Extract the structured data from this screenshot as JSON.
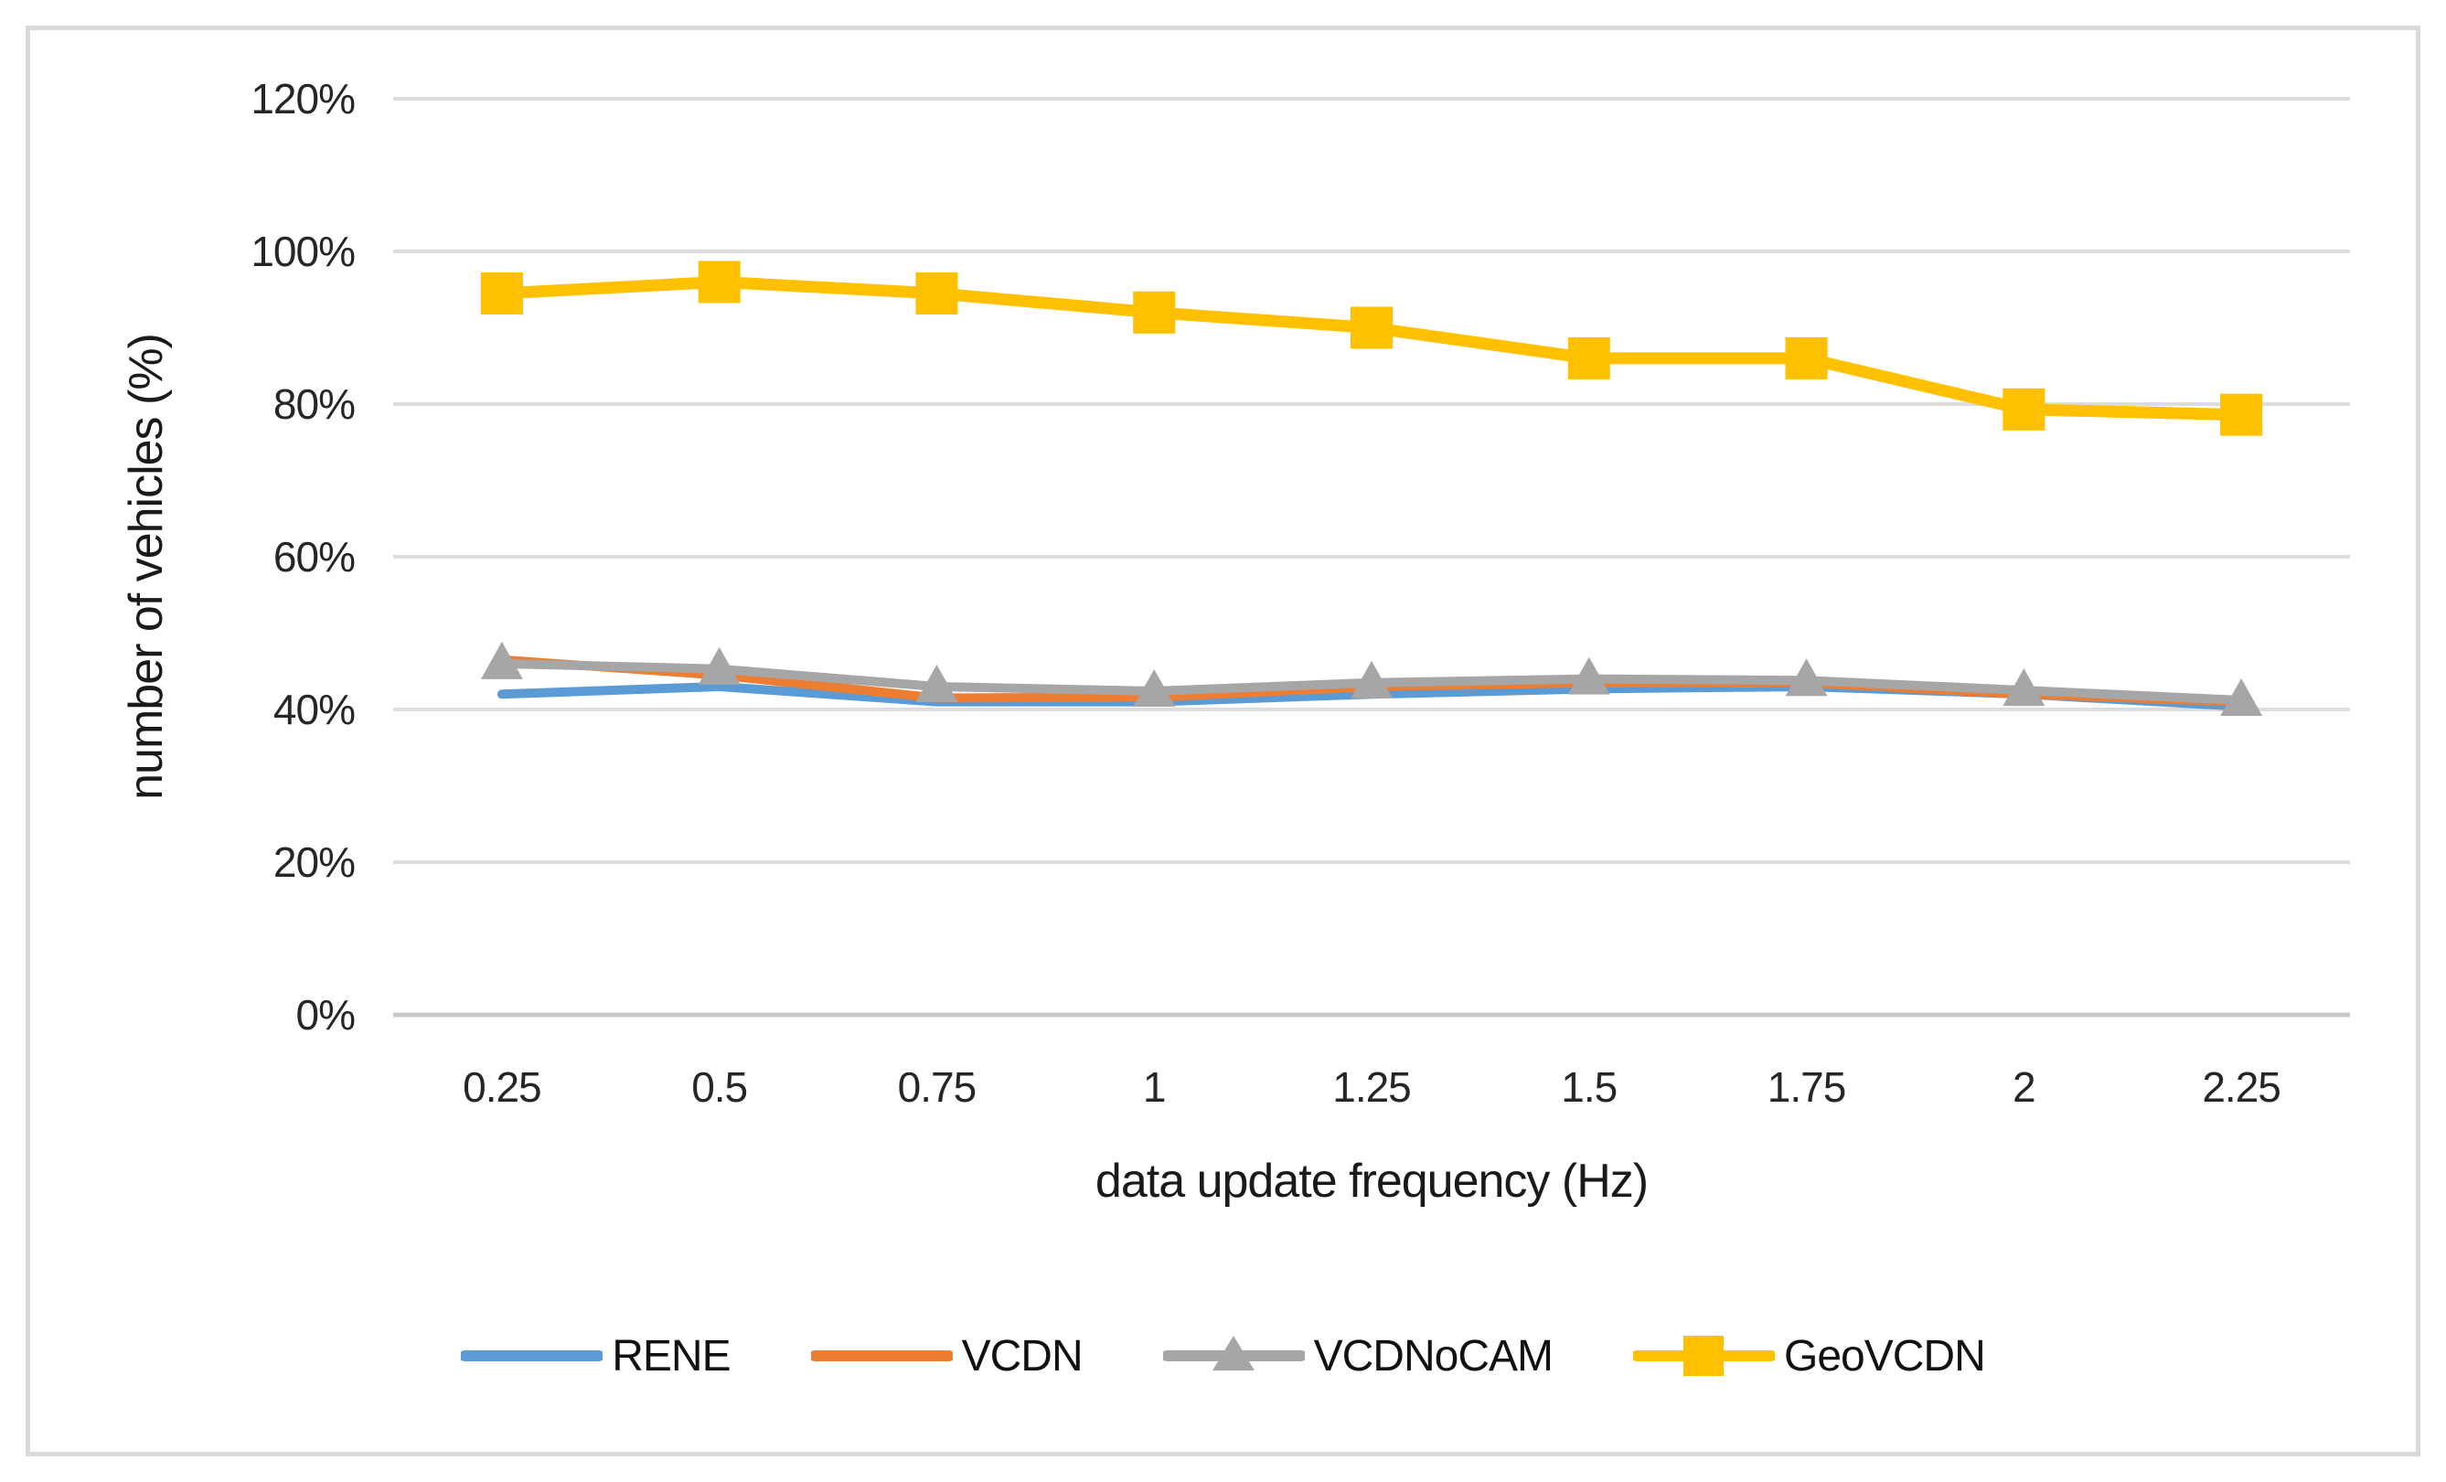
{
  "figure": {
    "background": "#ffffff",
    "border_color": "#d9d9d9",
    "gridline_color": "#dcdcdc",
    "axis_line_color": "#c9c9c9",
    "text_color": "#262626"
  },
  "chart_data": {
    "type": "line",
    "title": "",
    "xlabel": "data update frequency (Hz)",
    "ylabel": "number of vehicles (%)",
    "x_categories": [
      "0.25",
      "0.5",
      "0.75",
      "1",
      "1.25",
      "1.5",
      "1.75",
      "2",
      "2.25"
    ],
    "y_ticks": [
      "0%",
      "20%",
      "40%",
      "60%",
      "80%",
      "100%",
      "120%"
    ],
    "ylim": [
      0,
      120
    ],
    "y_tick_step": 20,
    "grid": true,
    "legend_position": "bottom",
    "series": [
      {
        "name": "RENE",
        "color": "#5b9bd5",
        "marker": "none",
        "values": [
          42.0,
          43.0,
          41.0,
          41.0,
          42.0,
          42.7,
          43.0,
          42.0,
          40.4
        ]
      },
      {
        "name": "VCDN",
        "color": "#ed7d31",
        "marker": "none",
        "values": [
          46.5,
          44.5,
          41.5,
          41.6,
          43.0,
          43.5,
          43.5,
          42.0,
          41.0
        ]
      },
      {
        "name": "VCDNoCAM",
        "color": "#a6a6a6",
        "marker": "triangle",
        "values": [
          46.0,
          45.3,
          43.0,
          42.4,
          43.5,
          44.0,
          43.8,
          42.5,
          41.2
        ]
      },
      {
        "name": "GeoVCDN",
        "color": "#ffc000",
        "marker": "square",
        "values": [
          94.5,
          96.0,
          94.5,
          92.0,
          90.0,
          86.0,
          86.0,
          79.3,
          78.6
        ]
      }
    ]
  }
}
